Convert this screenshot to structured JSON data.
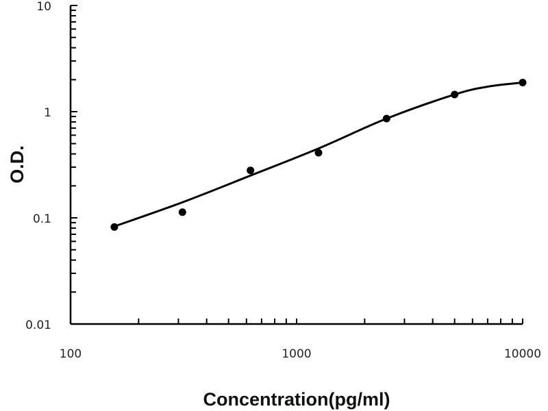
{
  "chart_data": {
    "type": "scatter",
    "title": "",
    "xlabel": "Concentration(pg/ml)",
    "ylabel": "O.D.",
    "xscale": "log",
    "yscale": "log",
    "xlim": [
      100,
      10000
    ],
    "ylim": [
      0.01,
      10
    ],
    "x_ticks": [
      "100",
      "1000",
      "10000"
    ],
    "y_ticks": [
      "0.01",
      "0.1",
      "1",
      "10"
    ],
    "grid": false,
    "legend": "none",
    "series": [
      {
        "x": [
          156.25,
          312.5,
          625,
          1250,
          2500,
          5000,
          10000
        ],
        "y": [
          0.082,
          0.113,
          0.28,
          0.41,
          0.86,
          1.45,
          1.88
        ],
        "marker": "filled-circle",
        "color": "#000000"
      }
    ],
    "fit_curve": {
      "x": [
        156.25,
        312.5,
        625,
        1250,
        2500,
        5000,
        7000,
        10000
      ],
      "y": [
        0.083,
        0.14,
        0.25,
        0.45,
        0.86,
        1.45,
        1.72,
        1.88
      ],
      "color": "#000000"
    }
  }
}
